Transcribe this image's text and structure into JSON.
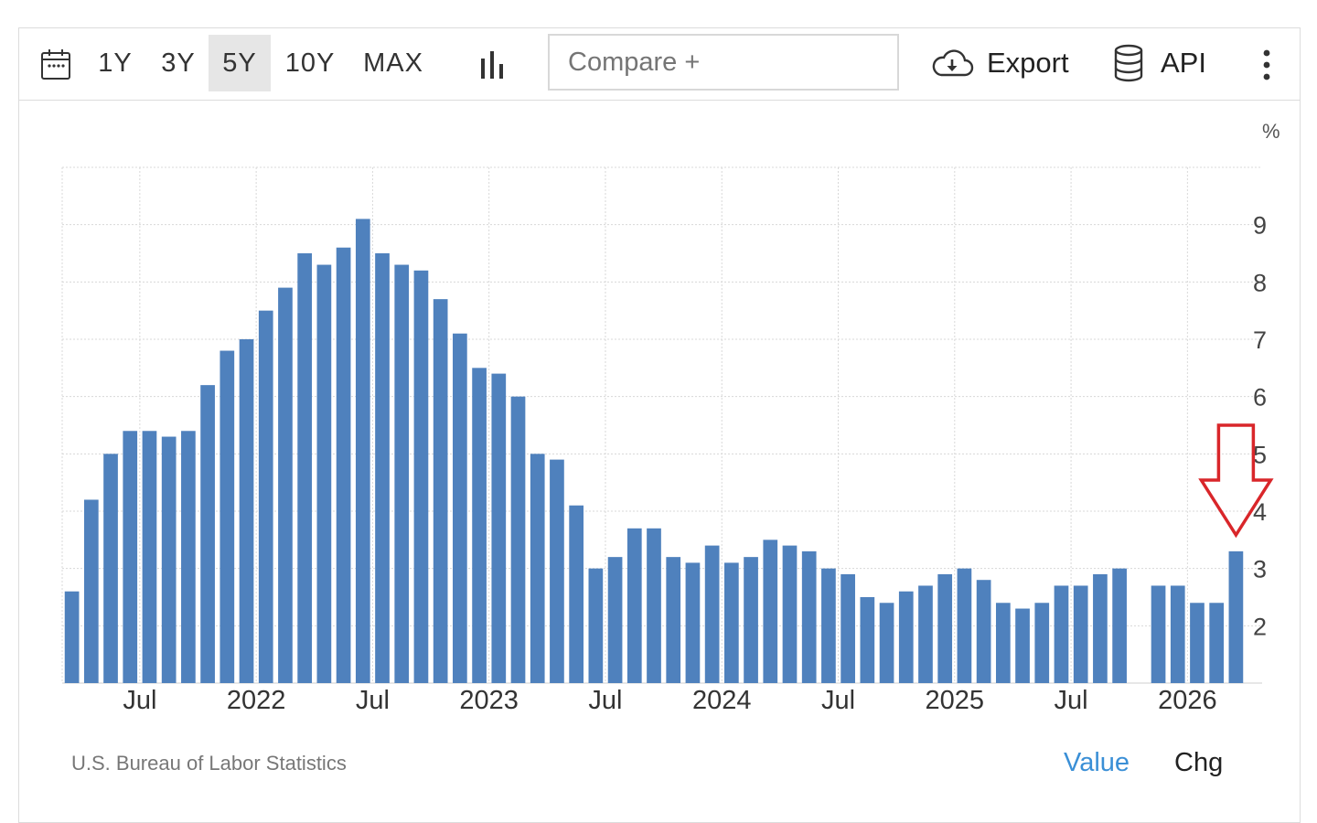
{
  "toolbar": {
    "ranges": [
      "1Y",
      "3Y",
      "5Y",
      "10Y",
      "MAX"
    ],
    "active_range": "5Y",
    "compare_placeholder": "Compare +",
    "export_label": "Export",
    "api_label": "API"
  },
  "chart_data": {
    "type": "bar",
    "unit_label": "%",
    "color": "#4f81bd",
    "grid": true,
    "y_axis_side": "right",
    "ylim": [
      1,
      10
    ],
    "y_ticks": [
      2,
      3,
      4,
      5,
      6,
      7,
      8,
      9
    ],
    "x_ticks": [
      {
        "label": "Jul",
        "x": "2021-07"
      },
      {
        "label": "2022",
        "x": "2022-01"
      },
      {
        "label": "Jul",
        "x": "2022-07"
      },
      {
        "label": "2023",
        "x": "2023-01"
      },
      {
        "label": "Jul",
        "x": "2023-07"
      },
      {
        "label": "2024",
        "x": "2024-01"
      },
      {
        "label": "Jul",
        "x": "2024-07"
      },
      {
        "label": "2025",
        "x": "2025-01"
      },
      {
        "label": "Jul",
        "x": "2025-07"
      },
      {
        "label": "2026",
        "x": "2026-01"
      }
    ],
    "x": [
      "2021-03",
      "2021-04",
      "2021-05",
      "2021-06",
      "2021-07",
      "2021-08",
      "2021-09",
      "2021-10",
      "2021-11",
      "2021-12",
      "2022-01",
      "2022-02",
      "2022-03",
      "2022-04",
      "2022-05",
      "2022-06",
      "2022-07",
      "2022-08",
      "2022-09",
      "2022-10",
      "2022-11",
      "2022-12",
      "2023-01",
      "2023-02",
      "2023-03",
      "2023-04",
      "2023-05",
      "2023-06",
      "2023-07",
      "2023-08",
      "2023-09",
      "2023-10",
      "2023-11",
      "2023-12",
      "2024-01",
      "2024-02",
      "2024-03",
      "2024-04",
      "2024-05",
      "2024-06",
      "2024-07",
      "2024-08",
      "2024-09",
      "2024-10",
      "2024-11",
      "2024-12",
      "2025-01",
      "2025-02",
      "2025-03",
      "2025-04",
      "2025-05",
      "2025-06",
      "2025-07",
      "2025-08",
      "2025-09",
      "2025-10",
      "2025-11",
      "2025-12",
      "2026-01",
      "2026-02",
      "2026-03"
    ],
    "values": [
      2.6,
      4.2,
      5.0,
      5.4,
      5.4,
      5.3,
      5.4,
      6.2,
      6.8,
      7.0,
      7.5,
      7.9,
      8.5,
      8.3,
      8.6,
      9.1,
      8.5,
      8.3,
      8.2,
      7.7,
      7.1,
      6.5,
      6.4,
      6.0,
      5.0,
      4.9,
      4.1,
      3.0,
      3.2,
      3.7,
      3.7,
      3.2,
      3.1,
      3.4,
      3.1,
      3.2,
      3.5,
      3.4,
      3.3,
      3.0,
      2.9,
      2.5,
      2.4,
      2.6,
      2.7,
      2.9,
      3.0,
      2.8,
      2.4,
      2.3,
      2.4,
      2.7,
      2.7,
      2.9,
      3.0,
      null,
      2.7,
      2.7,
      2.4,
      2.4,
      3.3
    ],
    "annotation": {
      "type": "arrow-down",
      "color": "#d9262a",
      "points_to": "2026-03"
    }
  },
  "footer": {
    "source": "U.S. Bureau of Labor Statistics",
    "tab_value": "Value",
    "tab_chg": "Chg"
  }
}
